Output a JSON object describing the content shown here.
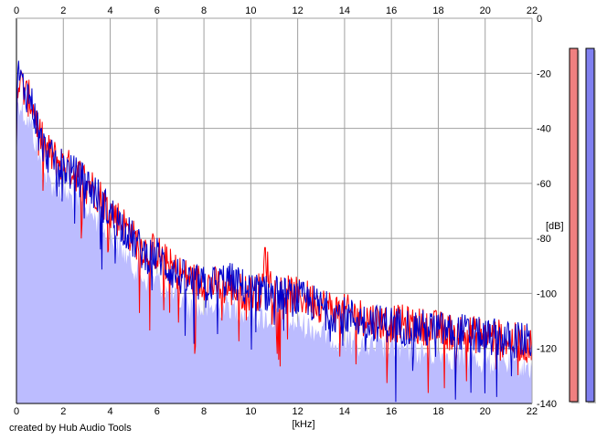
{
  "chart_data": {
    "type": "line",
    "title": "",
    "xlabel": "[kHz]",
    "ylabel": "[dB]",
    "xlim": [
      0,
      22
    ],
    "ylim": [
      -140,
      0
    ],
    "x_ticks": [
      "0",
      "2",
      "4",
      "6",
      "8",
      "10",
      "12",
      "14",
      "16",
      "18",
      "20",
      "22"
    ],
    "y_ticks": [
      "0",
      "-20",
      "-40",
      "-60",
      "-80",
      "-100",
      "-120",
      "-140"
    ],
    "grid": true,
    "series": [
      {
        "color": "#ff0000",
        "points": [
          [
            0.0,
            -40
          ],
          [
            0.05,
            -22
          ],
          [
            0.2,
            -24
          ],
          [
            0.4,
            -28
          ],
          [
            0.6,
            -30
          ],
          [
            0.8,
            -35
          ],
          [
            1.0,
            -42
          ],
          [
            1.2,
            -47
          ],
          [
            1.5,
            -50
          ],
          [
            2.0,
            -53
          ],
          [
            2.5,
            -56
          ],
          [
            3.0,
            -59
          ],
          [
            3.5,
            -64
          ],
          [
            4.0,
            -70
          ],
          [
            4.5,
            -74
          ],
          [
            5.0,
            -80
          ],
          [
            5.5,
            -84
          ],
          [
            6.0,
            -85
          ],
          [
            6.5,
            -90
          ],
          [
            7.0,
            -93
          ],
          [
            7.5,
            -95
          ],
          [
            8.0,
            -96
          ],
          [
            8.5,
            -97
          ],
          [
            9.0,
            -98
          ],
          [
            9.5,
            -99
          ],
          [
            10.0,
            -100
          ],
          [
            10.5,
            -99
          ],
          [
            10.6,
            -86
          ],
          [
            10.9,
            -98
          ],
          [
            11.5,
            -100
          ],
          [
            12.0,
            -101
          ],
          [
            12.5,
            -102
          ],
          [
            13.0,
            -104
          ],
          [
            13.5,
            -106
          ],
          [
            14.0,
            -107
          ],
          [
            14.5,
            -108
          ],
          [
            15.0,
            -109
          ],
          [
            15.5,
            -110
          ],
          [
            16.0,
            -111
          ],
          [
            16.5,
            -111
          ],
          [
            17.0,
            -112
          ],
          [
            17.5,
            -112
          ],
          [
            18.0,
            -113
          ],
          [
            18.5,
            -114
          ],
          [
            19.0,
            -114
          ],
          [
            19.5,
            -115
          ],
          [
            20.0,
            -115
          ],
          [
            20.5,
            -116
          ],
          [
            21.0,
            -117
          ],
          [
            21.5,
            -118
          ],
          [
            22.0,
            -119
          ]
        ]
      },
      {
        "color": "#0000cc",
        "points": [
          [
            0.0,
            -40
          ],
          [
            0.05,
            -20
          ],
          [
            0.2,
            -23
          ],
          [
            0.4,
            -27
          ],
          [
            0.6,
            -29
          ],
          [
            0.8,
            -36
          ],
          [
            1.0,
            -43
          ],
          [
            1.2,
            -48
          ],
          [
            1.5,
            -51
          ],
          [
            2.0,
            -54
          ],
          [
            2.5,
            -57
          ],
          [
            3.0,
            -60
          ],
          [
            3.5,
            -65
          ],
          [
            4.0,
            -71
          ],
          [
            4.5,
            -75
          ],
          [
            5.0,
            -81
          ],
          [
            5.5,
            -86
          ],
          [
            6.0,
            -86
          ],
          [
            6.5,
            -91
          ],
          [
            7.0,
            -94
          ],
          [
            7.5,
            -96
          ],
          [
            8.0,
            -97
          ],
          [
            8.5,
            -96
          ],
          [
            9.0,
            -95
          ],
          [
            9.5,
            -97
          ],
          [
            10.0,
            -99
          ],
          [
            10.5,
            -100
          ],
          [
            11.0,
            -100
          ],
          [
            11.5,
            -101
          ],
          [
            12.0,
            -102
          ],
          [
            12.5,
            -103
          ],
          [
            13.0,
            -105
          ],
          [
            13.5,
            -107
          ],
          [
            14.0,
            -108
          ],
          [
            14.5,
            -109
          ],
          [
            15.0,
            -110
          ],
          [
            15.5,
            -111
          ],
          [
            16.0,
            -111
          ],
          [
            16.5,
            -112
          ],
          [
            17.0,
            -112
          ],
          [
            17.5,
            -113
          ],
          [
            18.0,
            -113
          ],
          [
            18.5,
            -114
          ],
          [
            19.0,
            -114
          ],
          [
            19.5,
            -115
          ],
          [
            20.0,
            -116
          ],
          [
            20.5,
            -116
          ],
          [
            21.0,
            -117
          ],
          [
            21.5,
            -117
          ],
          [
            22.0,
            -118
          ]
        ]
      }
    ],
    "fill_color": "#bcbcff",
    "level_meters": [
      {
        "color": "#f08080",
        "level": 1.0
      },
      {
        "color": "#8080f0",
        "level": 1.0
      }
    ]
  },
  "footer": {
    "credit": "created by Hub Audio Tools"
  }
}
